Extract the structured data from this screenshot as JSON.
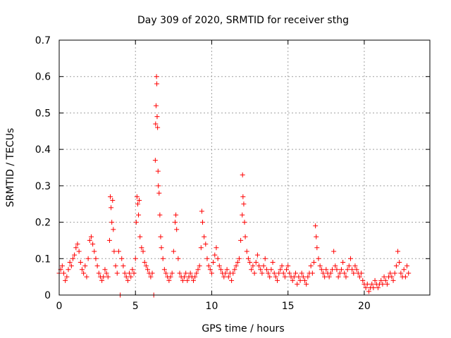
{
  "chart_data": {
    "type": "scatter",
    "title": "Day 309 of 2020, SRMTID for receiver sthg",
    "xlabel": "GPS time / hours",
    "ylabel": "SRMTID / TECUs",
    "xlim": [
      0,
      24.3
    ],
    "ylim": [
      0,
      0.7
    ],
    "xticks": [
      0,
      5,
      10,
      15,
      20
    ],
    "yticks": [
      0,
      0.1,
      0.2,
      0.3,
      0.4,
      0.5,
      0.6,
      0.7
    ],
    "xtick_labels": [
      "0",
      "5",
      "10",
      "15",
      "20"
    ],
    "ytick_labels": [
      "0",
      "0.1",
      "0.2",
      "0.3",
      "0.4",
      "0.5",
      "0.6",
      "0.7"
    ],
    "grid": true,
    "marker": "+",
    "color": "#ff0000",
    "series": [
      {
        "name": "SRMTID",
        "points": [
          [
            0.0,
            0.06
          ],
          [
            0.1,
            0.07
          ],
          [
            0.2,
            0.08
          ],
          [
            0.3,
            0.06
          ],
          [
            0.4,
            0.04
          ],
          [
            0.5,
            0.05
          ],
          [
            0.6,
            0.07
          ],
          [
            0.7,
            0.09
          ],
          [
            0.8,
            0.08
          ],
          [
            0.9,
            0.1
          ],
          [
            1.0,
            0.11
          ],
          [
            1.1,
            0.13
          ],
          [
            1.2,
            0.14
          ],
          [
            1.3,
            0.12
          ],
          [
            1.4,
            0.09
          ],
          [
            1.5,
            0.07
          ],
          [
            1.6,
            0.06
          ],
          [
            1.7,
            0.08
          ],
          [
            1.8,
            0.05
          ],
          [
            1.9,
            0.1
          ],
          [
            2.0,
            0.15
          ],
          [
            2.1,
            0.16
          ],
          [
            2.2,
            0.14
          ],
          [
            2.3,
            0.12
          ],
          [
            2.4,
            0.1
          ],
          [
            2.5,
            0.08
          ],
          [
            2.6,
            0.06
          ],
          [
            2.7,
            0.05
          ],
          [
            2.8,
            0.04
          ],
          [
            2.9,
            0.05
          ],
          [
            3.0,
            0.07
          ],
          [
            3.1,
            0.06
          ],
          [
            3.2,
            0.05
          ],
          [
            3.3,
            0.15
          ],
          [
            3.35,
            0.27
          ],
          [
            3.4,
            0.24
          ],
          [
            3.45,
            0.2
          ],
          [
            3.5,
            0.26
          ],
          [
            3.55,
            0.18
          ],
          [
            3.6,
            0.12
          ],
          [
            3.7,
            0.08
          ],
          [
            3.8,
            0.06
          ],
          [
            3.9,
            0.12
          ],
          [
            4.0,
            0.0
          ],
          [
            4.1,
            0.1
          ],
          [
            4.2,
            0.08
          ],
          [
            4.3,
            0.06
          ],
          [
            4.4,
            0.05
          ],
          [
            4.5,
            0.04
          ],
          [
            4.6,
            0.06
          ],
          [
            4.7,
            0.05
          ],
          [
            4.8,
            0.07
          ],
          [
            4.9,
            0.06
          ],
          [
            5.0,
            0.1
          ],
          [
            5.05,
            0.2
          ],
          [
            5.1,
            0.27
          ],
          [
            5.15,
            0.25
          ],
          [
            5.2,
            0.22
          ],
          [
            5.25,
            0.26
          ],
          [
            5.3,
            0.16
          ],
          [
            5.4,
            0.13
          ],
          [
            5.5,
            0.12
          ],
          [
            5.6,
            0.09
          ],
          [
            5.7,
            0.08
          ],
          [
            5.8,
            0.07
          ],
          [
            5.9,
            0.06
          ],
          [
            6.0,
            0.05
          ],
          [
            6.1,
            0.06
          ],
          [
            6.2,
            0.0
          ],
          [
            6.3,
            0.37
          ],
          [
            6.32,
            0.47
          ],
          [
            6.35,
            0.52
          ],
          [
            6.38,
            0.6
          ],
          [
            6.4,
            0.58
          ],
          [
            6.42,
            0.49
          ],
          [
            6.45,
            0.46
          ],
          [
            6.48,
            0.34
          ],
          [
            6.5,
            0.3
          ],
          [
            6.55,
            0.28
          ],
          [
            6.6,
            0.22
          ],
          [
            6.65,
            0.16
          ],
          [
            6.7,
            0.13
          ],
          [
            6.8,
            0.1
          ],
          [
            6.9,
            0.07
          ],
          [
            7.0,
            0.06
          ],
          [
            7.1,
            0.05
          ],
          [
            7.2,
            0.04
          ],
          [
            7.3,
            0.05
          ],
          [
            7.4,
            0.06
          ],
          [
            7.5,
            0.12
          ],
          [
            7.6,
            0.2
          ],
          [
            7.65,
            0.22
          ],
          [
            7.7,
            0.18
          ],
          [
            7.8,
            0.1
          ],
          [
            7.9,
            0.06
          ],
          [
            8.0,
            0.05
          ],
          [
            8.1,
            0.04
          ],
          [
            8.2,
            0.05
          ],
          [
            8.3,
            0.06
          ],
          [
            8.4,
            0.04
          ],
          [
            8.5,
            0.05
          ],
          [
            8.6,
            0.06
          ],
          [
            8.7,
            0.05
          ],
          [
            8.8,
            0.04
          ],
          [
            8.9,
            0.05
          ],
          [
            9.0,
            0.06
          ],
          [
            9.1,
            0.07
          ],
          [
            9.2,
            0.08
          ],
          [
            9.3,
            0.13
          ],
          [
            9.35,
            0.23
          ],
          [
            9.4,
            0.2
          ],
          [
            9.5,
            0.16
          ],
          [
            9.6,
            0.14
          ],
          [
            9.7,
            0.1
          ],
          [
            9.8,
            0.08
          ],
          [
            9.9,
            0.07
          ],
          [
            10.0,
            0.06
          ],
          [
            10.1,
            0.09
          ],
          [
            10.2,
            0.11
          ],
          [
            10.3,
            0.13
          ],
          [
            10.4,
            0.1
          ],
          [
            10.5,
            0.08
          ],
          [
            10.6,
            0.07
          ],
          [
            10.7,
            0.06
          ],
          [
            10.8,
            0.05
          ],
          [
            10.9,
            0.06
          ],
          [
            11.0,
            0.07
          ],
          [
            11.1,
            0.05
          ],
          [
            11.2,
            0.06
          ],
          [
            11.3,
            0.04
          ],
          [
            11.4,
            0.06
          ],
          [
            11.5,
            0.07
          ],
          [
            11.6,
            0.08
          ],
          [
            11.7,
            0.09
          ],
          [
            11.8,
            0.1
          ],
          [
            11.9,
            0.15
          ],
          [
            12.0,
            0.22
          ],
          [
            12.02,
            0.33
          ],
          [
            12.05,
            0.27
          ],
          [
            12.1,
            0.25
          ],
          [
            12.15,
            0.2
          ],
          [
            12.2,
            0.16
          ],
          [
            12.3,
            0.12
          ],
          [
            12.4,
            0.1
          ],
          [
            12.5,
            0.09
          ],
          [
            12.6,
            0.07
          ],
          [
            12.7,
            0.08
          ],
          [
            12.8,
            0.06
          ],
          [
            12.9,
            0.09
          ],
          [
            13.0,
            0.11
          ],
          [
            13.1,
            0.08
          ],
          [
            13.2,
            0.07
          ],
          [
            13.3,
            0.06
          ],
          [
            13.4,
            0.08
          ],
          [
            13.5,
            0.1
          ],
          [
            13.6,
            0.07
          ],
          [
            13.7,
            0.06
          ],
          [
            13.8,
            0.05
          ],
          [
            13.9,
            0.07
          ],
          [
            14.0,
            0.09
          ],
          [
            14.1,
            0.06
          ],
          [
            14.2,
            0.05
          ],
          [
            14.3,
            0.04
          ],
          [
            14.4,
            0.06
          ],
          [
            14.5,
            0.07
          ],
          [
            14.6,
            0.08
          ],
          [
            14.7,
            0.06
          ],
          [
            14.8,
            0.05
          ],
          [
            14.9,
            0.07
          ],
          [
            15.0,
            0.08
          ],
          [
            15.1,
            0.06
          ],
          [
            15.2,
            0.05
          ],
          [
            15.3,
            0.04
          ],
          [
            15.4,
            0.05
          ],
          [
            15.5,
            0.06
          ],
          [
            15.6,
            0.03
          ],
          [
            15.7,
            0.05
          ],
          [
            15.8,
            0.04
          ],
          [
            15.9,
            0.06
          ],
          [
            16.0,
            0.05
          ],
          [
            16.1,
            0.04
          ],
          [
            16.2,
            0.03
          ],
          [
            16.3,
            0.05
          ],
          [
            16.4,
            0.06
          ],
          [
            16.5,
            0.08
          ],
          [
            16.6,
            0.06
          ],
          [
            16.7,
            0.09
          ],
          [
            16.8,
            0.19
          ],
          [
            16.85,
            0.16
          ],
          [
            16.9,
            0.13
          ],
          [
            17.0,
            0.1
          ],
          [
            17.1,
            0.08
          ],
          [
            17.2,
            0.07
          ],
          [
            17.3,
            0.06
          ],
          [
            17.4,
            0.05
          ],
          [
            17.5,
            0.07
          ],
          [
            17.6,
            0.06
          ],
          [
            17.7,
            0.05
          ],
          [
            17.8,
            0.06
          ],
          [
            17.9,
            0.07
          ],
          [
            18.0,
            0.12
          ],
          [
            18.1,
            0.08
          ],
          [
            18.2,
            0.07
          ],
          [
            18.3,
            0.05
          ],
          [
            18.4,
            0.06
          ],
          [
            18.5,
            0.07
          ],
          [
            18.6,
            0.09
          ],
          [
            18.7,
            0.06
          ],
          [
            18.8,
            0.05
          ],
          [
            18.9,
            0.07
          ],
          [
            19.0,
            0.08
          ],
          [
            19.1,
            0.1
          ],
          [
            19.2,
            0.07
          ],
          [
            19.3,
            0.06
          ],
          [
            19.4,
            0.08
          ],
          [
            19.5,
            0.07
          ],
          [
            19.6,
            0.06
          ],
          [
            19.7,
            0.05
          ],
          [
            19.8,
            0.06
          ],
          [
            19.9,
            0.04
          ],
          [
            20.0,
            0.03
          ],
          [
            20.1,
            0.02
          ],
          [
            20.2,
            0.03
          ],
          [
            20.3,
            0.01
          ],
          [
            20.4,
            0.02
          ],
          [
            20.5,
            0.03
          ],
          [
            20.6,
            0.02
          ],
          [
            20.7,
            0.04
          ],
          [
            20.8,
            0.03
          ],
          [
            20.9,
            0.02
          ],
          [
            21.0,
            0.03
          ],
          [
            21.1,
            0.04
          ],
          [
            21.2,
            0.03
          ],
          [
            21.3,
            0.05
          ],
          [
            21.4,
            0.04
          ],
          [
            21.5,
            0.03
          ],
          [
            21.6,
            0.05
          ],
          [
            21.7,
            0.06
          ],
          [
            21.8,
            0.05
          ],
          [
            21.9,
            0.04
          ],
          [
            22.0,
            0.06
          ],
          [
            22.1,
            0.08
          ],
          [
            22.2,
            0.12
          ],
          [
            22.3,
            0.09
          ],
          [
            22.4,
            0.06
          ],
          [
            22.5,
            0.05
          ],
          [
            22.6,
            0.07
          ],
          [
            22.7,
            0.05
          ],
          [
            22.8,
            0.08
          ],
          [
            22.9,
            0.06
          ]
        ]
      }
    ]
  }
}
